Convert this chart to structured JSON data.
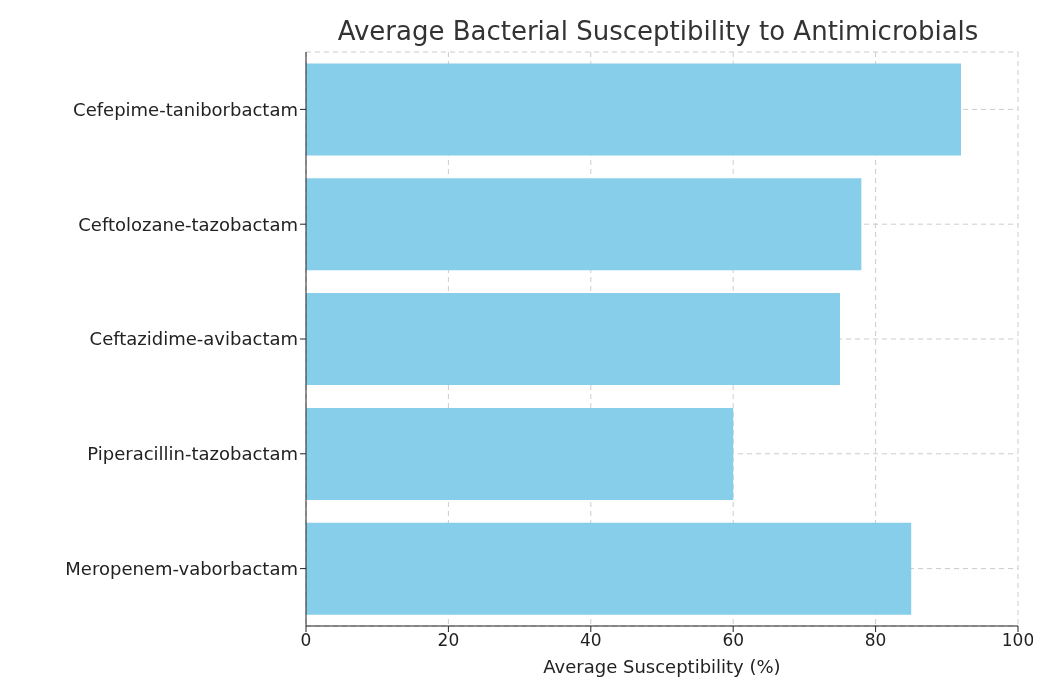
{
  "chart_data": {
    "type": "bar",
    "orientation": "horizontal",
    "title": "Average Bacterial Susceptibility to Antimicrobials",
    "xlabel": "Average Susceptibility (%)",
    "categories": [
      "Cefepime-taniborbactam",
      "Ceftolozane-tazobactam",
      "Ceftazidime-avibactam",
      "Piperacillin-tazobactam",
      "Meropenem-vaborbactam"
    ],
    "values": [
      92,
      78,
      75,
      60,
      85
    ],
    "color": "#87ceeb",
    "xlim": [
      0,
      100
    ],
    "xticks": [
      0,
      20,
      40,
      60,
      80,
      100
    ],
    "grid": true
  }
}
